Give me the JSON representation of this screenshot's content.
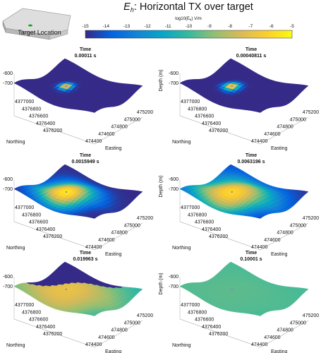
{
  "title_prefix": "E",
  "title_sub": "h",
  "title_rest": ": Horizontal TX over target",
  "inset": {
    "label": "Target Location"
  },
  "colorbar": {
    "label_prefix": "log10(E",
    "label_sub": "h",
    "label_suffix": ") V/m",
    "ticks": [
      "-15",
      "-14",
      "-13",
      "-12",
      "-11",
      "-10",
      "-9",
      "-8",
      "-7",
      "-6",
      "-5"
    ],
    "colors": [
      "#352a87",
      "#0363e1",
      "#1485d4",
      "#06a7c6",
      "#38b99e",
      "#92bf73",
      "#d9ba56",
      "#fcce2e",
      "#f9fb0e"
    ]
  },
  "chart_data": {
    "type": "heatmap",
    "title": "Eh: Horizontal TX over target",
    "colorbar_label": "log10(Eh) V/m",
    "clim": [
      -15,
      -5
    ],
    "time_label": "Time",
    "xlabel": "Easting",
    "ylabel": "Northing",
    "zlabel": "Depth (m)",
    "easting_ticks": [
      "474400",
      "474600",
      "474800",
      "475000",
      "475200"
    ],
    "northing_ticks": [
      "4376200",
      "4376400",
      "4376600",
      "4376800",
      "4377000"
    ],
    "depth_ticks": [
      "-600",
      "-700"
    ],
    "panels": [
      {
        "time": "0.00011 s",
        "peak": -6.0,
        "spread": 0.05,
        "background": -15.0,
        "cutoff": false
      },
      {
        "time": "0.00040811 s",
        "peak": -5.5,
        "spread": 0.06,
        "background": -15.0,
        "cutoff": false
      },
      {
        "time": "0.0015949 s",
        "peak": -5.5,
        "spread": 0.22,
        "background": -15.0,
        "cutoff": false
      },
      {
        "time": "0.0063196 s",
        "peak": -6.0,
        "spread": 0.32,
        "background": -15.0,
        "cutoff": false
      },
      {
        "time": "0.019963 s",
        "peak": -7.0,
        "spread": 0.45,
        "background": -11.0,
        "cutoff": true
      },
      {
        "time": "0.10001 s",
        "peak": -9.5,
        "spread": 0.6,
        "background": -10.0,
        "cutoff": false
      }
    ]
  }
}
